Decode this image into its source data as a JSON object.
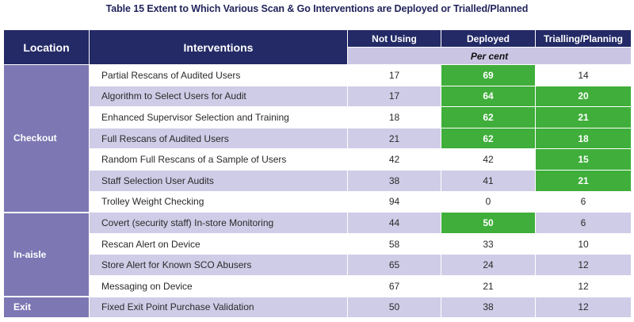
{
  "caption": "Table 15 Extent to Which Various Scan & Go Interventions are Deployed or Trialled/Planned",
  "headers": {
    "location": "Location",
    "interventions": "Interventions",
    "not_using": "Not Using",
    "deployed": "Deployed",
    "trialling": "Trialling/Planning",
    "per_cent": "Per cent"
  },
  "highlight_color": "#3fae3a",
  "locations": [
    "Checkout",
    "In-aisle",
    "Exit"
  ],
  "rows": [
    {
      "intervention": "Partial Rescans of Audited Users",
      "not_using": "17",
      "deployed": "69",
      "trialling": "14"
    },
    {
      "intervention": "Algorithm to Select Users for Audit",
      "not_using": "17",
      "deployed": "64",
      "trialling": "20"
    },
    {
      "intervention": "Enhanced Supervisor Selection and Training",
      "not_using": "18",
      "deployed": "62",
      "trialling": "21"
    },
    {
      "intervention": "Full Rescans of Audited Users",
      "not_using": "21",
      "deployed": "62",
      "trialling": "18"
    },
    {
      "intervention": "Random Full Rescans of a Sample of Users",
      "not_using": "42",
      "deployed": "42",
      "trialling": "15"
    },
    {
      "intervention": "Staff Selection User Audits",
      "not_using": "38",
      "deployed": "41",
      "trialling": "21"
    },
    {
      "intervention": "Trolley Weight Checking",
      "not_using": "94",
      "deployed": "0",
      "trialling": "6"
    },
    {
      "intervention": "Covert (security staff) In-store Monitoring",
      "not_using": "44",
      "deployed": "50",
      "trialling": "6"
    },
    {
      "intervention": "Rescan Alert on Device",
      "not_using": "58",
      "deployed": "33",
      "trialling": "10"
    },
    {
      "intervention": "Store Alert for Known SCO Abusers",
      "not_using": "65",
      "deployed": "24",
      "trialling": "12"
    },
    {
      "intervention": "Messaging on Device",
      "not_using": "67",
      "deployed": "21",
      "trialling": "12"
    },
    {
      "intervention": "Fixed Exit Point Purchase Validation",
      "not_using": "50",
      "deployed": "38",
      "trialling": "12"
    }
  ]
}
